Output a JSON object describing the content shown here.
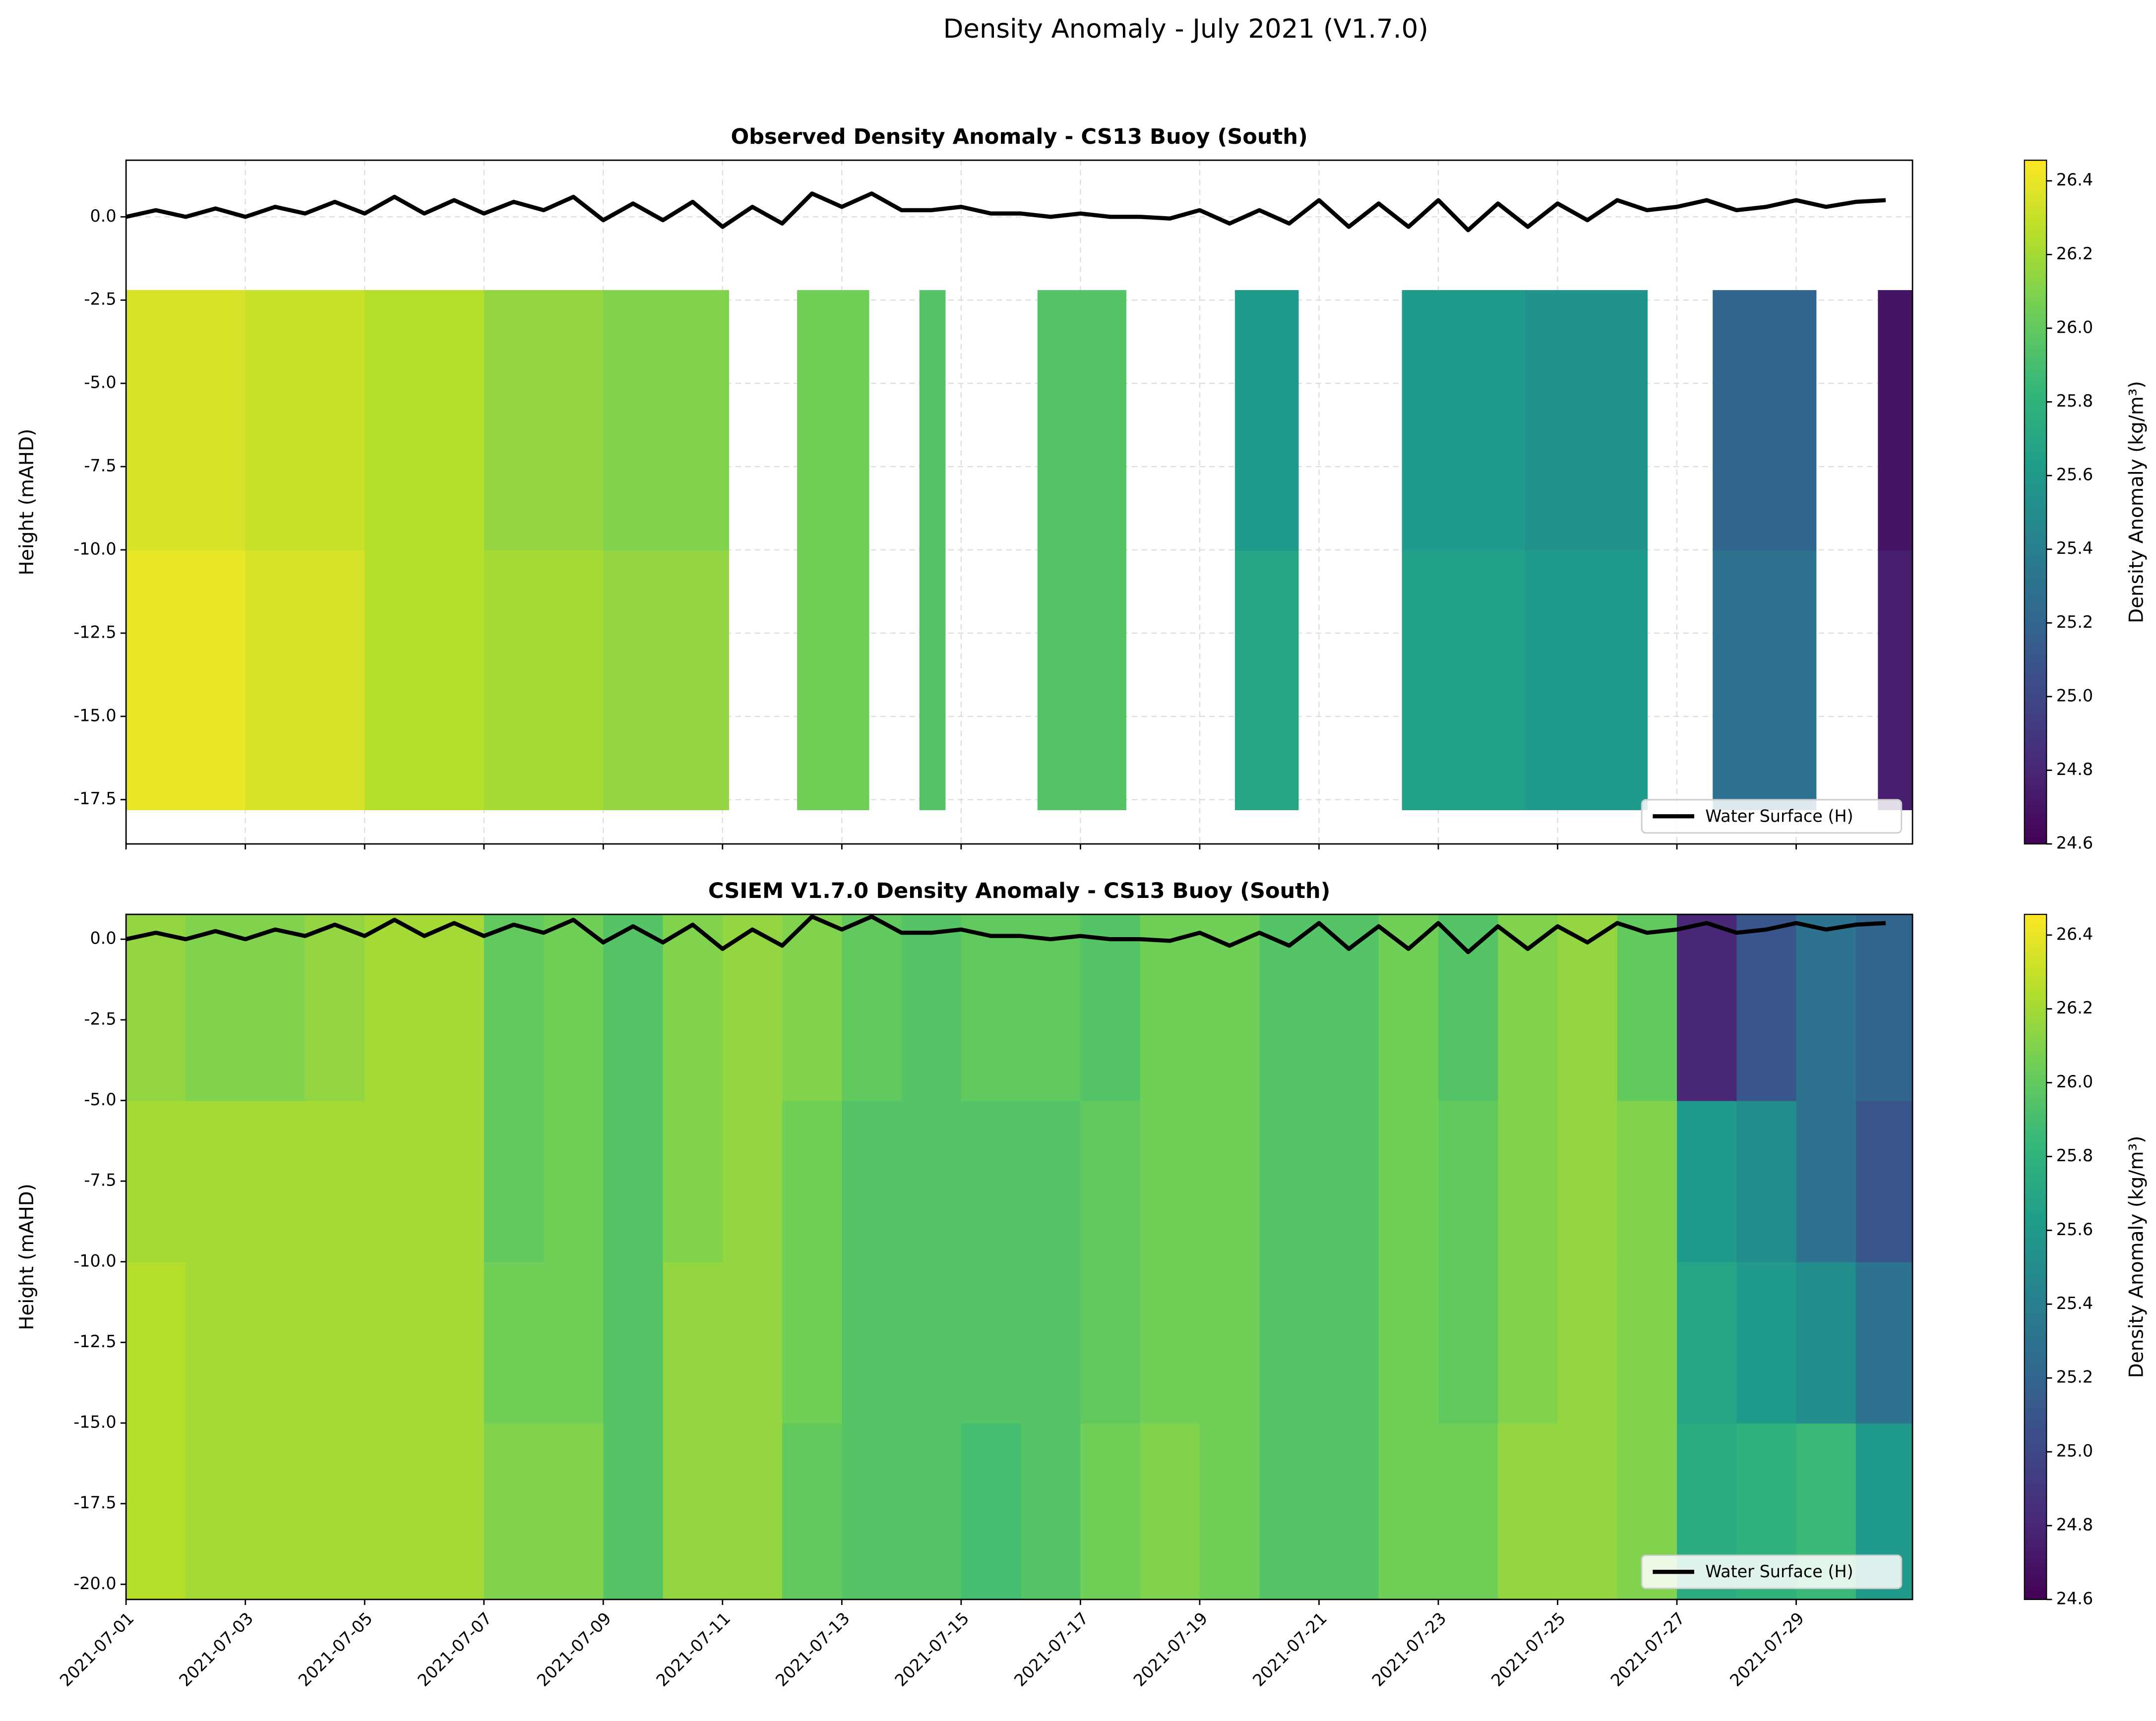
{
  "title": "Density Anomaly - July 2021 (V1.7.0)",
  "chart_data": [
    {
      "type": "heatmap",
      "title": "Observed Density Anomaly - CS13 Buoy (South)",
      "ylabel": "Height (mAHD)",
      "colorbar_label": "Density Anomaly (kg/m³)",
      "colormap": "viridis",
      "grid": true,
      "legend_loc": "lower right",
      "xlim": [
        1,
        30.95
      ],
      "ylim": [
        -18.83,
        1.7
      ],
      "xticks": [
        1,
        3,
        5,
        7,
        9,
        11,
        13,
        15,
        17,
        19,
        21,
        23,
        25,
        27,
        29
      ],
      "yticks": [
        {
          "value": 0,
          "label": "0.0"
        },
        -2.5,
        {
          "value": -5,
          "label": "-5.0"
        },
        -7.5,
        {
          "value": -10,
          "label": "-10.0"
        },
        -12.5,
        {
          "value": -15,
          "label": "-15.0"
        },
        -17.5
      ],
      "clim": [
        24.6,
        26.456
      ],
      "cticks": [
        24.6,
        24.8,
        {
          "value": 25,
          "label": "25.0"
        },
        25.2,
        25.4,
        25.6,
        25.8,
        {
          "value": 26,
          "label": "26.0"
        },
        26.2,
        26.4
      ],
      "heatmap": {
        "xbins": [
          1,
          3,
          5,
          7,
          9,
          11.1,
          12.25,
          13.45,
          14.3,
          14.73,
          16.28,
          17.76,
          19.59,
          20.65,
          22.39,
          24.45,
          26.5,
          27.6,
          29.33,
          30.37,
          30.95
        ],
        "ybins": [
          -17.8,
          -10,
          -2.2
        ],
        "z": [
          [
            26.4,
            26.35,
            26.25,
            26.2,
            26.15,
            null,
            26.05,
            null,
            25.95,
            null,
            25.95,
            null,
            25.7,
            null,
            25.65,
            25.6,
            null,
            25.3,
            null,
            24.75
          ],
          [
            26.35,
            26.3,
            26.25,
            26.15,
            26.1,
            null,
            26.05,
            null,
            25.95,
            null,
            25.95,
            null,
            25.6,
            null,
            25.6,
            25.55,
            null,
            25.2,
            null,
            24.7
          ]
        ]
      },
      "series": [
        {
          "name": "Water Surface (H)",
          "color": "#000000",
          "x": [
            1,
            1.5,
            2,
            2.5,
            3,
            3.5,
            4,
            4.5,
            5,
            5.5,
            6,
            6.5,
            7,
            7.5,
            8,
            8.5,
            9,
            9.5,
            10,
            10.5,
            11,
            11.5,
            12,
            12.5,
            13,
            13.5,
            14,
            14.5,
            15,
            15.5,
            16,
            16.5,
            17,
            17.5,
            18,
            18.5,
            19,
            19.5,
            20,
            20.5,
            21,
            21.5,
            22,
            22.5,
            23,
            23.5,
            24,
            24.5,
            25,
            25.5,
            26,
            26.5,
            27,
            27.5,
            28,
            28.5,
            29,
            29.5,
            30,
            30.5
          ],
          "values": [
            0.0,
            0.2,
            0.0,
            0.25,
            0.0,
            0.3,
            0.1,
            0.45,
            0.1,
            0.6,
            0.1,
            0.5,
            0.1,
            0.45,
            0.2,
            0.6,
            -0.1,
            0.4,
            -0.1,
            0.45,
            -0.3,
            0.3,
            -0.2,
            0.7,
            0.3,
            0.7,
            0.2,
            0.2,
            0.3,
            0.1,
            0.1,
            0.0,
            0.1,
            0.0,
            0.0,
            -0.05,
            0.2,
            -0.2,
            0.2,
            -0.2,
            0.5,
            -0.3,
            0.4,
            -0.3,
            0.5,
            -0.4,
            0.4,
            -0.3,
            0.4,
            -0.1,
            0.5,
            0.2,
            0.3,
            0.5,
            0.2,
            0.3,
            0.5,
            0.3,
            0.45,
            0.5
          ]
        }
      ]
    },
    {
      "type": "heatmap",
      "title": "CSIEM V1.7.0 Density Anomaly - CS13 Buoy (South)",
      "ylabel": "Height (mAHD)",
      "colorbar_label": "Density Anomaly (kg/m³)",
      "colormap": "viridis",
      "grid": true,
      "legend_loc": "lower right",
      "xlim": [
        1,
        30.95
      ],
      "ylim": [
        -20.47,
        0.77
      ],
      "xticks": [
        {
          "value": 1,
          "label": "2021-07-01"
        },
        {
          "value": 3,
          "label": "2021-07-03"
        },
        {
          "value": 5,
          "label": "2021-07-05"
        },
        {
          "value": 7,
          "label": "2021-07-07"
        },
        {
          "value": 9,
          "label": "2021-07-09"
        },
        {
          "value": 11,
          "label": "2021-07-11"
        },
        {
          "value": 13,
          "label": "2021-07-13"
        },
        {
          "value": 15,
          "label": "2021-07-15"
        },
        {
          "value": 17,
          "label": "2021-07-17"
        },
        {
          "value": 19,
          "label": "2021-07-19"
        },
        {
          "value": 21,
          "label": "2021-07-21"
        },
        {
          "value": 23,
          "label": "2021-07-23"
        },
        {
          "value": 25,
          "label": "2021-07-25"
        },
        {
          "value": 27,
          "label": "2021-07-27"
        },
        {
          "value": 29,
          "label": "2021-07-29"
        }
      ],
      "yticks": [
        {
          "value": 0,
          "label": "0.0"
        },
        -2.5,
        {
          "value": -5,
          "label": "-5.0"
        },
        -7.5,
        {
          "value": -10,
          "label": "-10.0"
        },
        -12.5,
        {
          "value": -15,
          "label": "-15.0"
        },
        -17.5,
        {
          "value": -20,
          "label": "-20.0"
        }
      ],
      "clim": [
        24.6,
        26.456
      ],
      "cticks": [
        24.6,
        24.8,
        {
          "value": 25,
          "label": "25.0"
        },
        25.2,
        25.4,
        25.6,
        25.8,
        {
          "value": 26,
          "label": "26.0"
        },
        26.2,
        26.4
      ],
      "heatmap": {
        "xbins": [
          1,
          2,
          3,
          4,
          5,
          6,
          7,
          8,
          9,
          10,
          11,
          12,
          13,
          14,
          15,
          16,
          17,
          18,
          19,
          20,
          21,
          22,
          23,
          24,
          25,
          26,
          27,
          28,
          29,
          30,
          30.95
        ],
        "ybins": [
          -20.47,
          -15,
          -10,
          -5,
          0.77
        ],
        "z": [
          [
            26.25,
            26.2,
            26.2,
            26.2,
            26.2,
            26.2,
            26.1,
            26.1,
            25.95,
            26.15,
            26.15,
            26.0,
            25.95,
            25.95,
            25.9,
            25.95,
            26.05,
            26.1,
            26.05,
            25.95,
            25.95,
            26.05,
            26.05,
            26.15,
            26.15,
            26.1,
            25.75,
            25.8,
            25.85,
            25.6
          ],
          [
            26.25,
            26.2,
            26.2,
            26.2,
            26.2,
            26.2,
            26.05,
            26.05,
            25.95,
            26.15,
            26.15,
            26.05,
            25.95,
            25.95,
            25.95,
            25.95,
            26.0,
            26.05,
            26.05,
            25.95,
            25.95,
            26.05,
            26.0,
            26.1,
            26.15,
            26.1,
            25.7,
            25.6,
            25.5,
            25.3
          ],
          [
            26.2,
            26.2,
            26.2,
            26.2,
            26.2,
            26.2,
            26.0,
            26.05,
            25.95,
            26.1,
            26.15,
            26.05,
            25.95,
            25.95,
            25.95,
            25.95,
            26.0,
            26.05,
            26.05,
            25.95,
            25.95,
            26.05,
            26.0,
            26.1,
            26.15,
            26.1,
            25.6,
            25.5,
            25.3,
            25.1
          ],
          [
            26.15,
            26.1,
            26.1,
            26.15,
            26.2,
            26.2,
            26.0,
            26.05,
            25.95,
            26.1,
            26.15,
            26.1,
            26.0,
            25.95,
            26.0,
            26.0,
            25.95,
            26.05,
            26.05,
            25.95,
            25.95,
            26.05,
            25.95,
            26.1,
            26.15,
            26.0,
            24.8,
            25.1,
            25.3,
            25.2
          ]
        ]
      },
      "series": [
        {
          "name": "Water Surface (H)",
          "color": "#000000",
          "x": [
            1,
            1.5,
            2,
            2.5,
            3,
            3.5,
            4,
            4.5,
            5,
            5.5,
            6,
            6.5,
            7,
            7.5,
            8,
            8.5,
            9,
            9.5,
            10,
            10.5,
            11,
            11.5,
            12,
            12.5,
            13,
            13.5,
            14,
            14.5,
            15,
            15.5,
            16,
            16.5,
            17,
            17.5,
            18,
            18.5,
            19,
            19.5,
            20,
            20.5,
            21,
            21.5,
            22,
            22.5,
            23,
            23.5,
            24,
            24.5,
            25,
            25.5,
            26,
            26.5,
            27,
            27.5,
            28,
            28.5,
            29,
            29.5,
            30,
            30.5
          ],
          "values": [
            0.0,
            0.2,
            0.0,
            0.25,
            0.0,
            0.3,
            0.1,
            0.45,
            0.1,
            0.6,
            0.1,
            0.5,
            0.1,
            0.45,
            0.2,
            0.6,
            -0.1,
            0.4,
            -0.1,
            0.45,
            -0.3,
            0.3,
            -0.2,
            0.7,
            0.3,
            0.7,
            0.2,
            0.2,
            0.3,
            0.1,
            0.1,
            0.0,
            0.1,
            0.0,
            0.0,
            -0.05,
            0.2,
            -0.2,
            0.2,
            -0.2,
            0.5,
            -0.3,
            0.4,
            -0.3,
            0.5,
            -0.4,
            0.4,
            -0.3,
            0.4,
            -0.1,
            0.5,
            0.2,
            0.3,
            0.5,
            0.2,
            0.3,
            0.5,
            0.3,
            0.45,
            0.5
          ]
        }
      ]
    }
  ]
}
